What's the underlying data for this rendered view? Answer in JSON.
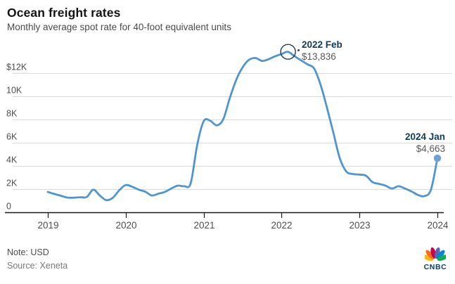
{
  "header": {
    "title": "Ocean freight rates",
    "subtitle": "Monthly average spot rate for 40-foot equivalent units"
  },
  "annotations": {
    "peak": {
      "label": "2022 Feb",
      "value": "$13,836"
    },
    "latest": {
      "label": "2024 Jan",
      "value": "$4,663"
    }
  },
  "footer": {
    "note": "Note: USD",
    "source": "Source: Xeneta",
    "logo_text": "CNBC"
  },
  "colors": {
    "line": "#4f96d1",
    "end_dot": "#6ba3d6",
    "marker_ring": "#1e3c5c",
    "grid": "#d9d9d9",
    "axis": "#1a1a1a",
    "tick_label": "#4d4d4d",
    "annotation_label": "#0d3c5f",
    "annotation_value": "#595959",
    "peacock": [
      "#fcb711",
      "#f37021",
      "#cc004c",
      "#6460aa",
      "#0089d0",
      "#0db14b"
    ]
  },
  "chart_data": {
    "type": "line",
    "title": "Ocean freight rates",
    "subtitle": "Monthly average spot rate for 40-foot equivalent units",
    "unit": "USD",
    "x_start": "2019-01",
    "x_freq": "monthly",
    "x_tick_labels": [
      "2019",
      "2020",
      "2021",
      "2022",
      "2023",
      "2024"
    ],
    "x_tick_month_indices": [
      0,
      12,
      24,
      36,
      48,
      60
    ],
    "y_ticks": [
      {
        "label": "$12K",
        "value": 12000
      },
      {
        "label": "10K",
        "value": 10000
      },
      {
        "label": "8K",
        "value": 8000
      },
      {
        "label": "6K",
        "value": 6000
      },
      {
        "label": "4K",
        "value": 4000
      },
      {
        "label": "2K",
        "value": 2000
      },
      {
        "label": "0",
        "value": 0
      }
    ],
    "ylim": [
      0,
      14500
    ],
    "grid": "horizontal",
    "legend": "none",
    "series": [
      {
        "name": "Monthly average spot rate (USD per FEU)",
        "values": [
          1750,
          1580,
          1430,
          1270,
          1260,
          1300,
          1320,
          1950,
          1450,
          1050,
          1250,
          1900,
          2350,
          2200,
          1950,
          1780,
          1450,
          1600,
          1750,
          2050,
          2300,
          2250,
          2500,
          5800,
          7850,
          7900,
          7500,
          8000,
          9800,
          11400,
          12500,
          13150,
          13300,
          13050,
          13200,
          13450,
          13650,
          13836,
          13450,
          13100,
          12750,
          12400,
          11000,
          9000,
          6800,
          4600,
          3500,
          3300,
          3250,
          3150,
          2600,
          2450,
          2300,
          2050,
          2250,
          2050,
          1800,
          1500,
          1400,
          1950,
          4663
        ]
      }
    ],
    "highlights": [
      {
        "month_index": 37,
        "label": "2022 Feb",
        "value": 13836,
        "marker": "open-circle"
      },
      {
        "month_index": 60,
        "label": "2024 Jan",
        "value": 4663,
        "marker": "dot"
      }
    ]
  }
}
